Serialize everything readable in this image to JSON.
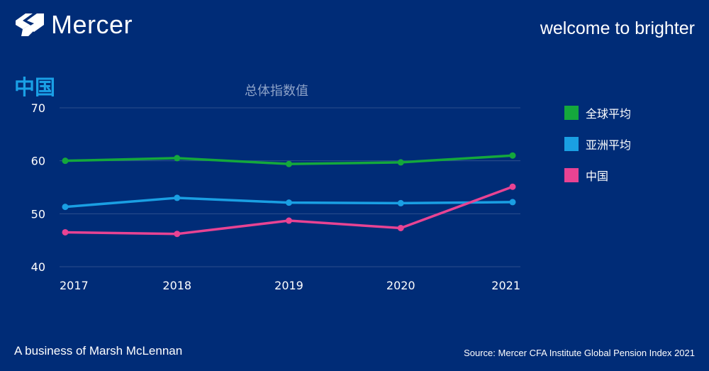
{
  "header": {
    "brand_name": "Mercer",
    "tagline": "welcome to brighter",
    "logo_icon": "mercer-logo-mark"
  },
  "section_title": "中国",
  "chart_data": {
    "type": "line",
    "title": "总体指数值",
    "x": [
      "2017",
      "2018",
      "2019",
      "2020",
      "2021"
    ],
    "ylim": [
      40,
      70
    ],
    "yticks": [
      40,
      50,
      60,
      70
    ],
    "grid": true,
    "legend_position": "right",
    "series": [
      {
        "name": "全球平均",
        "color": "#14a83c",
        "values": [
          60.0,
          60.5,
          59.4,
          59.7,
          61.0
        ]
      },
      {
        "name": "亚洲平均",
        "color": "#1a9fe3",
        "values": [
          51.3,
          53.0,
          52.1,
          52.0,
          52.2
        ]
      },
      {
        "name": "中国",
        "color": "#e84393",
        "values": [
          46.5,
          46.2,
          48.7,
          47.3,
          55.1
        ]
      }
    ]
  },
  "footer": {
    "left": "A business of Marsh McLennan",
    "right": "Source: Mercer CFA Institute Global Pension Index 2021"
  }
}
